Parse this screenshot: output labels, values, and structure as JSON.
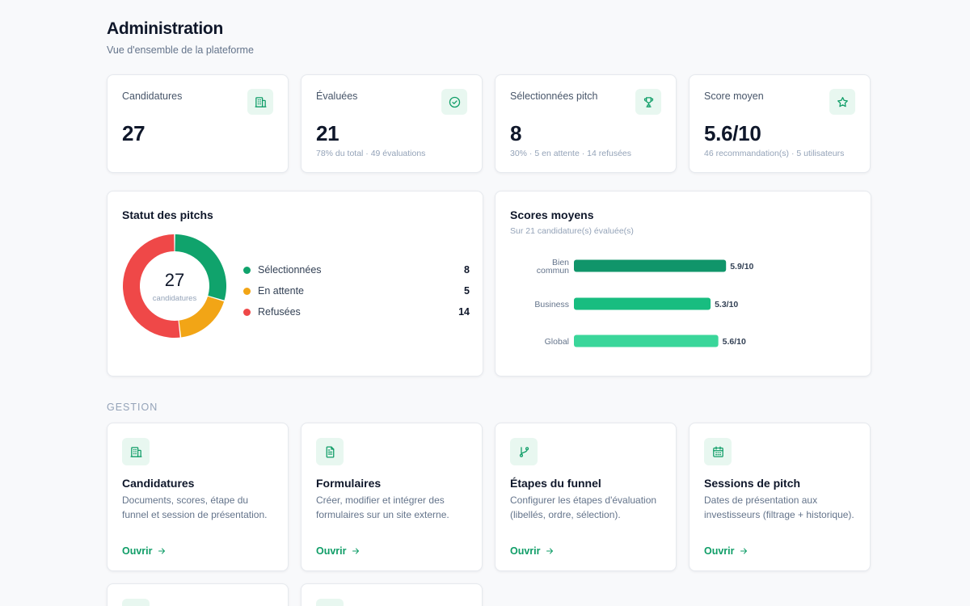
{
  "header": {
    "title": "Administration",
    "subtitle": "Vue d'ensemble de la plateforme"
  },
  "stats": [
    {
      "label": "Candidatures",
      "value": "27",
      "sub": "",
      "icon": "building-icon"
    },
    {
      "label": "Évaluées",
      "value": "21",
      "sub": "78% du total · 49 évaluations",
      "icon": "check-circle-icon"
    },
    {
      "label": "Sélectionnées pitch",
      "value": "8",
      "sub": "30% · 5 en attente · 14 refusées",
      "icon": "trophy-icon"
    },
    {
      "label": "Score moyen",
      "value": "5.6/10",
      "sub": "46 recommandation(s) · 5 utilisateurs",
      "icon": "star-icon"
    }
  ],
  "pitch_status": {
    "title": "Statut des pitchs",
    "total": "27",
    "total_label": "candidatures",
    "items": [
      {
        "label": "Sélectionnées",
        "value": "8",
        "color": "#10a36c"
      },
      {
        "label": "En attente",
        "value": "5",
        "color": "#f2a516"
      },
      {
        "label": "Refusées",
        "value": "14",
        "color": "#ef4848"
      }
    ]
  },
  "scores": {
    "title": "Scores moyens",
    "subtitle": "Sur 21 candidature(s) évaluée(s)"
  },
  "chart_data": {
    "type": "bar",
    "orientation": "horizontal",
    "categories": [
      "Bien commun",
      "Business",
      "Global"
    ],
    "values": [
      5.9,
      5.3,
      5.6
    ],
    "value_labels": [
      "5.9/10",
      "5.3/10",
      "5.6/10"
    ],
    "colors": [
      "#10956a",
      "#18bd80",
      "#3ad69a"
    ],
    "xlim": [
      0,
      10
    ],
    "title": "",
    "xlabel": "",
    "ylabel": "",
    "grid": false
  },
  "section": {
    "label": "GESTION"
  },
  "management": [
    {
      "title": "Candidatures",
      "desc": "Documents, scores, étape du funnel et session de présentation.",
      "link": "Ouvrir",
      "icon": "building-icon"
    },
    {
      "title": "Formulaires",
      "desc": "Créer, modifier et intégrer des formulaires sur un site externe.",
      "link": "Ouvrir",
      "icon": "document-icon"
    },
    {
      "title": "Étapes du funnel",
      "desc": "Configurer les étapes d'évaluation (libellés, ordre, sélection).",
      "link": "Ouvrir",
      "icon": "git-branch-icon"
    },
    {
      "title": "Sessions de pitch",
      "desc": "Dates de présentation aux investisseurs (filtrage + historique).",
      "link": "Ouvrir",
      "icon": "calendar-icon"
    }
  ]
}
